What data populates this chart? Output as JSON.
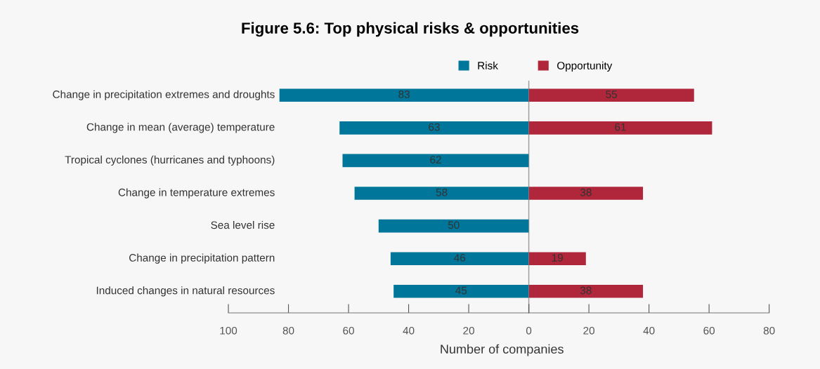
{
  "chart_data": [
    {
      "type": "bar",
      "orientation": "horizontal",
      "title": "Figure 5.6: Top physical risks & opportunities",
      "xlabel": "Number of companies",
      "categories": [
        "Change in precipitation extremes and droughts",
        "Change in mean (average) temperature",
        "Tropical cyclones (hurricanes and typhoons)",
        "Change in temperature extremes",
        "Sea level rise",
        "Change in precipitation pattern",
        "Induced changes in natural resources"
      ],
      "series": [
        {
          "name": "Risk",
          "color": "#00779a",
          "values": [
            83,
            63,
            62,
            58,
            50,
            46,
            45
          ]
        }
      ],
      "data_labels": true,
      "xlim": [
        100,
        0
      ],
      "xticks": [
        100,
        80,
        60,
        40,
        20,
        0
      ],
      "ref_lines": [
        {
          "axis": "x",
          "value": 0,
          "color": "#999999"
        }
      ],
      "legend": "top right"
    },
    {
      "type": "bar",
      "orientation": "horizontal",
      "categories": [
        null,
        null,
        null,
        null,
        null,
        null,
        null
      ],
      "series": [
        {
          "name": "Opportunity",
          "color": "#b0263a",
          "values": [
            55,
            61,
            null,
            38,
            null,
            19,
            38
          ]
        }
      ],
      "data_labels": true,
      "xlim": [
        0,
        80
      ],
      "xticks": [
        {
          "value": 0,
          "label": null
        },
        20,
        40,
        60,
        80
      ],
      "tick_labels": "x",
      "legend": "top left"
    }
  ]
}
